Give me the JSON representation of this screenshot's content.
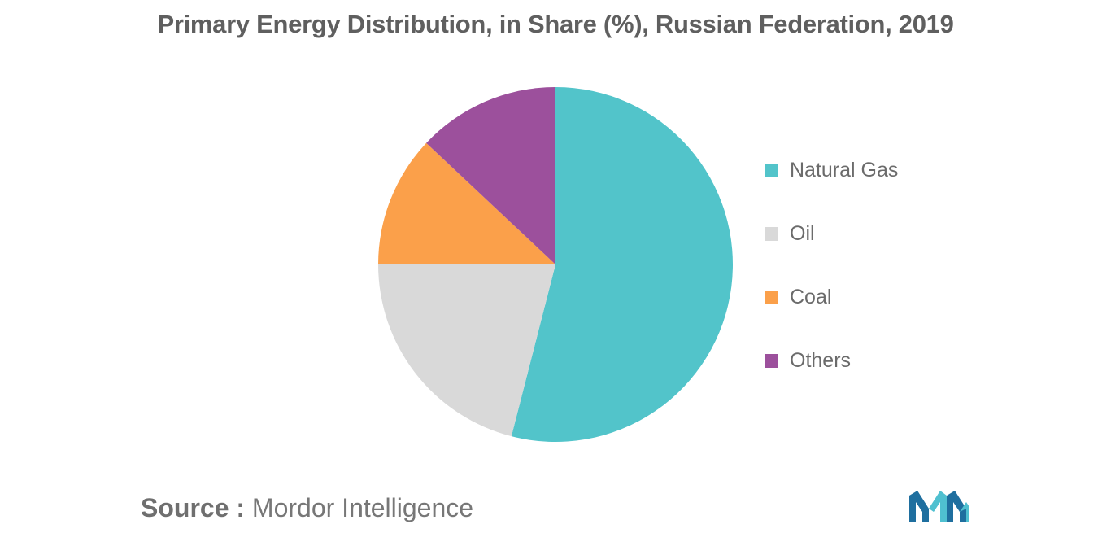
{
  "chart_data": {
    "type": "pie",
    "title": "Primary Energy Distribution, in Share (%), Russian Federation, 2019",
    "categories": [
      "Natural Gas",
      "Oil",
      "Coal",
      "Others"
    ],
    "values": [
      54,
      21,
      12,
      13
    ],
    "colors": [
      "#52c4ca",
      "#d9d9d9",
      "#fba04a",
      "#9c509c"
    ],
    "legend_position": "right"
  },
  "legend": {
    "items": [
      {
        "label": "Natural Gas",
        "color": "#52c4ca"
      },
      {
        "label": "Oil",
        "color": "#d9d9d9"
      },
      {
        "label": "Coal",
        "color": "#fba04a"
      },
      {
        "label": "Others",
        "color": "#9c509c"
      }
    ]
  },
  "source": {
    "label": "Source :",
    "value": "Mordor Intelligence"
  },
  "logo": {
    "icon": "mordor-intelligence-logo-icon",
    "colors": [
      "#1f6f9f",
      "#4fc0d0"
    ]
  }
}
